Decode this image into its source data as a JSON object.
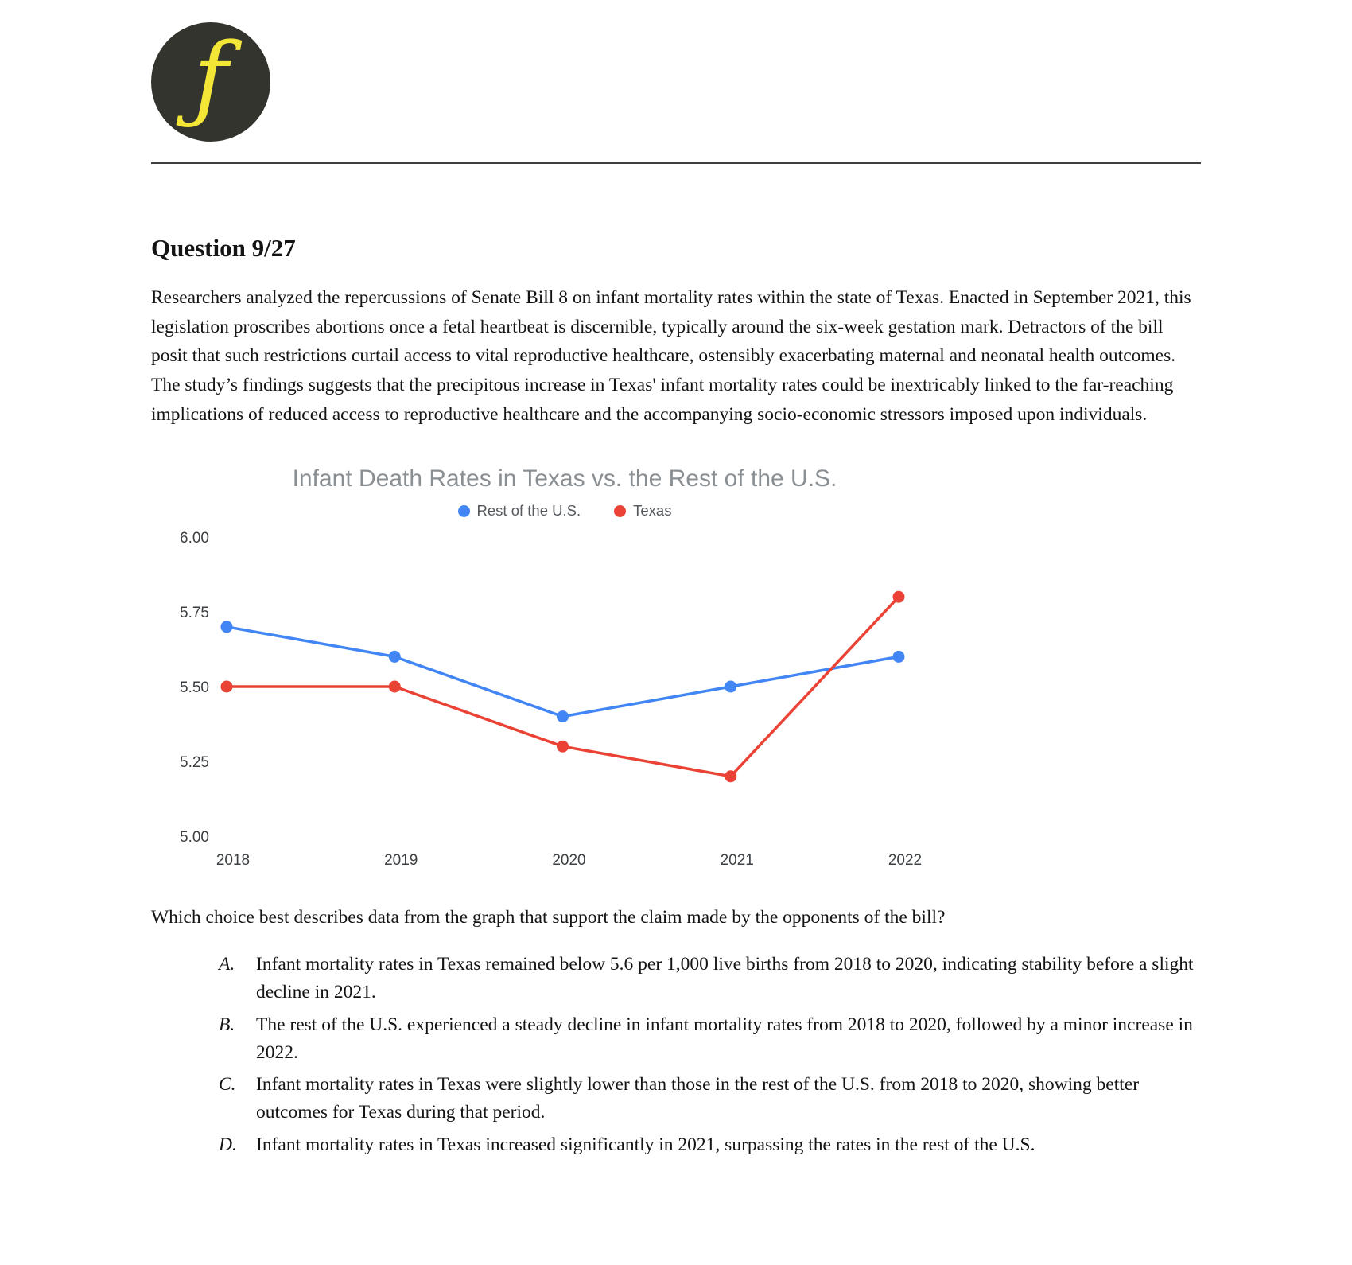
{
  "logo": {
    "glyph": "ƒ",
    "bg_color": "#34342e",
    "fg_color": "#f3e637"
  },
  "question": {
    "heading": "Question 9/27",
    "passage": "Researchers analyzed the repercussions of Senate Bill 8 on infant mortality rates within the state of Texas. Enacted in September 2021, this legislation proscribes abortions once a fetal heartbeat is discernible, typically around the six-week gestation mark. Detractors of the bill posit that such restrictions curtail access to vital reproductive healthcare, ostensibly exacerbating maternal and neonatal health outcomes. The study’s findings suggests that the precipitous increase in Texas' infant mortality rates could be inextricably linked to the far-reaching implications of reduced access to reproductive healthcare and the accompanying socio-economic stressors imposed upon individuals.",
    "prompt": "Which choice best describes data from the graph that support the claim made by the opponents of the bill?",
    "choices": [
      {
        "letter": "A.",
        "text": "Infant mortality rates in Texas remained below 5.6 per 1,000 live births from 2018 to 2020, indicating stability before a slight decline in 2021."
      },
      {
        "letter": "B.",
        "text": "The rest of the U.S. experienced a steady decline in infant mortality rates from 2018 to 2020, followed by a minor increase in 2022."
      },
      {
        "letter": "C.",
        "text": "Infant mortality rates in Texas were slightly lower than those in the rest of the U.S. from 2018 to 2020, showing better outcomes for Texas during that period."
      },
      {
        "letter": "D.",
        "text": "Infant mortality rates in Texas increased significantly in 2021, surpassing the rates in the rest of the U.S."
      }
    ]
  },
  "chart_data": {
    "type": "line",
    "title": "Infant Death Rates in Texas vs. the Rest of the U.S.",
    "categories": [
      "2018",
      "2019",
      "2020",
      "2021",
      "2022"
    ],
    "series": [
      {
        "name": "Rest of the U.S.",
        "color": "#4285f4",
        "values": [
          5.7,
          5.6,
          5.4,
          5.5,
          5.6
        ]
      },
      {
        "name": "Texas",
        "color": "#ea4335",
        "values": [
          5.5,
          5.5,
          5.3,
          5.2,
          5.8
        ]
      }
    ],
    "ylim": [
      5.0,
      6.0
    ],
    "yticks": [
      "6.00",
      "5.75",
      "5.50",
      "5.25",
      "5.00"
    ],
    "grid": false,
    "legend_position": "top"
  }
}
